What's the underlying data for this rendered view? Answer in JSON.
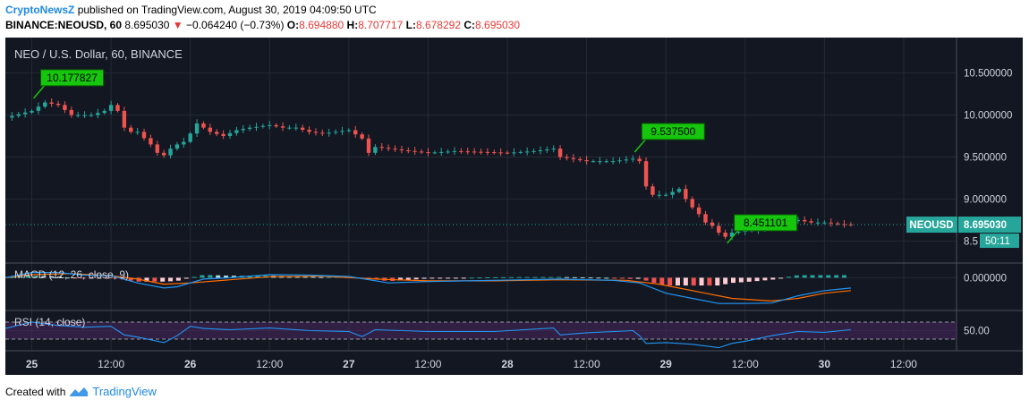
{
  "header": {
    "line1": {
      "author": "CryptoNewsZ",
      "rest": "published on TradingView.com, August 30, 2019 04:09:50 UTC"
    },
    "line2": {
      "symbol": "BINANCE:NEOUSD, 60",
      "last": "8.695030",
      "arrow": "▼",
      "change": "−0.064240 (−0.73%)",
      "o_label": "O:",
      "o_value": "8.694880",
      "h_label": "H:",
      "h_value": "8.707717",
      "l_label": "L:",
      "l_value": "8.678292",
      "c_label": "C:",
      "c_value": "8.695030"
    }
  },
  "footer": {
    "created_with": "Created with",
    "brand": "TradingView"
  },
  "colors": {
    "background": "#131722",
    "up": "#26a69a",
    "down": "#ef5350",
    "annotation": "#16c60c",
    "macd_line": "#2196f3",
    "signal_line": "#ff6d00",
    "rsi_line": "#2196f3",
    "rsi_band": "#4a2760"
  },
  "chart_data": [
    {
      "type": "candlestick",
      "title": "NEO / U.S. Dollar, 60, BINANCE",
      "symbol_badge": "NEOUSD",
      "last_price_label": "8.695030",
      "countdown": "50:11",
      "y_ticks": [
        10.5,
        10.0,
        9.5,
        9.0,
        8.5
      ],
      "y_tick_labels": [
        "10.500000",
        "10.000000",
        "9.500000",
        "9.000000",
        "8.5"
      ],
      "ylim": [
        8.28,
        10.88
      ],
      "x_tick_labels": [
        "25",
        "12:00",
        "26",
        "12:00",
        "27",
        "12:00",
        "28",
        "12:00",
        "29",
        "12:00",
        "30",
        "12:00"
      ],
      "x_tick_hours": [
        0,
        12,
        24,
        36,
        48,
        60,
        72,
        84,
        96,
        108,
        120,
        132
      ],
      "x_range_hours": [
        -4,
        140
      ],
      "price_path": [
        [
          -4,
          9.97
        ],
        [
          0,
          10.05
        ],
        [
          2,
          10.15
        ],
        [
          4,
          10.12
        ],
        [
          6,
          10.0
        ],
        [
          9,
          10.0
        ],
        [
          11,
          10.05
        ],
        [
          12,
          10.12
        ],
        [
          13,
          10.05
        ],
        [
          14,
          9.85
        ],
        [
          15,
          9.8
        ],
        [
          16,
          9.8
        ],
        [
          18,
          9.65
        ],
        [
          19,
          9.55
        ],
        [
          20,
          9.52
        ],
        [
          21,
          9.6
        ],
        [
          22,
          9.65
        ],
        [
          23,
          9.68
        ],
        [
          24,
          9.78
        ],
        [
          25,
          9.9
        ],
        [
          26,
          9.85
        ],
        [
          27,
          9.8
        ],
        [
          29,
          9.75
        ],
        [
          31,
          9.82
        ],
        [
          33,
          9.85
        ],
        [
          36,
          9.88
        ],
        [
          38,
          9.85
        ],
        [
          40,
          9.85
        ],
        [
          42,
          9.8
        ],
        [
          44,
          9.78
        ],
        [
          46,
          9.8
        ],
        [
          48,
          9.82
        ],
        [
          50,
          9.72
        ],
        [
          51,
          9.55
        ],
        [
          52,
          9.62
        ],
        [
          56,
          9.58
        ],
        [
          60,
          9.55
        ],
        [
          64,
          9.57
        ],
        [
          68,
          9.56
        ],
        [
          72,
          9.55
        ],
        [
          76,
          9.57
        ],
        [
          79,
          9.6
        ],
        [
          80,
          9.5
        ],
        [
          84,
          9.45
        ],
        [
          88,
          9.45
        ],
        [
          91,
          9.48
        ],
        [
          92,
          9.45
        ],
        [
          93,
          9.15
        ],
        [
          94,
          9.05
        ],
        [
          96,
          9.05
        ],
        [
          98,
          9.12
        ],
        [
          99,
          9.0
        ],
        [
          100,
          8.9
        ],
        [
          101,
          8.82
        ],
        [
          102,
          8.72
        ],
        [
          103,
          8.68
        ],
        [
          104,
          8.6
        ],
        [
          105,
          8.55
        ],
        [
          106,
          8.6
        ],
        [
          108,
          8.62
        ],
        [
          110,
          8.63
        ],
        [
          112,
          8.68
        ],
        [
          114,
          8.72
        ],
        [
          116,
          8.75
        ],
        [
          118,
          8.72
        ],
        [
          120,
          8.72
        ],
        [
          122,
          8.7
        ],
        [
          124,
          8.695
        ]
      ],
      "annotations": [
        {
          "label": "10.177827",
          "hour": 0,
          "price": 10.1778
        },
        {
          "label": "9.537500",
          "hour": 91,
          "price": 9.5375
        },
        {
          "label": "8.451101",
          "hour": 105,
          "price": 8.4511
        }
      ]
    },
    {
      "type": "macd",
      "label": "MACD (12, 26, close, 9)",
      "y_tick_labels": [
        "0.000000"
      ],
      "ylim": [
        -0.12,
        0.05
      ],
      "macd_path": [
        [
          -4,
          0.0
        ],
        [
          0,
          0.02
        ],
        [
          4,
          0.02
        ],
        [
          8,
          0.01
        ],
        [
          12,
          0.008
        ],
        [
          16,
          -0.02
        ],
        [
          20,
          -0.04
        ],
        [
          22,
          -0.035
        ],
        [
          26,
          -0.005
        ],
        [
          30,
          0.0
        ],
        [
          36,
          0.012
        ],
        [
          42,
          0.01
        ],
        [
          48,
          0.005
        ],
        [
          54,
          -0.02
        ],
        [
          60,
          -0.015
        ],
        [
          70,
          -0.01
        ],
        [
          80,
          -0.005
        ],
        [
          88,
          -0.01
        ],
        [
          92,
          -0.02
        ],
        [
          96,
          -0.06
        ],
        [
          100,
          -0.08
        ],
        [
          104,
          -0.1
        ],
        [
          108,
          -0.1
        ],
        [
          112,
          -0.098
        ],
        [
          116,
          -0.07
        ],
        [
          120,
          -0.05
        ],
        [
          124,
          -0.04
        ]
      ],
      "signal_path": [
        [
          -4,
          0.0
        ],
        [
          0,
          0.012
        ],
        [
          6,
          0.016
        ],
        [
          12,
          0.008
        ],
        [
          16,
          -0.005
        ],
        [
          20,
          -0.025
        ],
        [
          24,
          -0.02
        ],
        [
          30,
          -0.008
        ],
        [
          36,
          0.004
        ],
        [
          44,
          0.006
        ],
        [
          52,
          -0.005
        ],
        [
          60,
          -0.012
        ],
        [
          70,
          -0.012
        ],
        [
          80,
          -0.008
        ],
        [
          90,
          -0.01
        ],
        [
          95,
          -0.025
        ],
        [
          100,
          -0.05
        ],
        [
          106,
          -0.08
        ],
        [
          112,
          -0.09
        ],
        [
          116,
          -0.08
        ],
        [
          120,
          -0.06
        ],
        [
          124,
          -0.05
        ]
      ]
    },
    {
      "type": "rsi",
      "label": "RSI (14, close)",
      "y_tick_labels": [
        "50.00"
      ],
      "ylim": [
        5,
        95
      ],
      "band": [
        30,
        70
      ],
      "rsi_path": [
        [
          -4,
          55
        ],
        [
          0,
          70
        ],
        [
          4,
          62
        ],
        [
          8,
          58
        ],
        [
          12,
          60
        ],
        [
          14,
          40
        ],
        [
          16,
          35
        ],
        [
          20,
          22
        ],
        [
          22,
          38
        ],
        [
          24,
          60
        ],
        [
          26,
          55
        ],
        [
          30,
          52
        ],
        [
          36,
          56
        ],
        [
          42,
          50
        ],
        [
          48,
          48
        ],
        [
          50,
          36
        ],
        [
          52,
          52
        ],
        [
          60,
          48
        ],
        [
          70,
          48
        ],
        [
          79,
          56
        ],
        [
          80,
          40
        ],
        [
          84,
          45
        ],
        [
          91,
          50
        ],
        [
          92,
          38
        ],
        [
          93,
          20
        ],
        [
          96,
          22
        ],
        [
          100,
          18
        ],
        [
          104,
          10
        ],
        [
          106,
          20
        ],
        [
          108,
          25
        ],
        [
          112,
          38
        ],
        [
          116,
          48
        ],
        [
          120,
          46
        ],
        [
          124,
          52
        ]
      ]
    }
  ]
}
